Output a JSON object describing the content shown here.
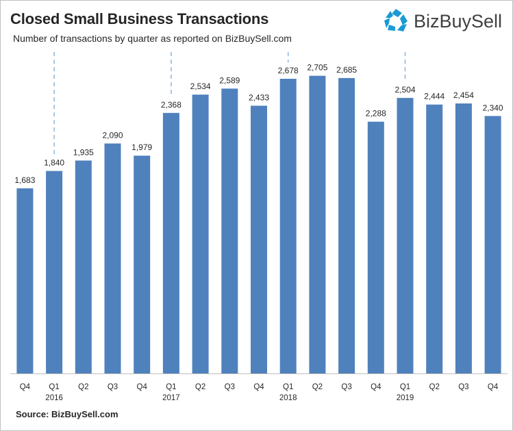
{
  "title": "Closed Small Business Transactions",
  "subtitle": "Number of transactions by quarter as reported  on  BizBuySell.com",
  "source": "Source: BizBuySell.com",
  "logo": {
    "text": "BizBuySell",
    "icon": "bizbuysell-pentagon-icon",
    "color": "#1a9ad6"
  },
  "colors": {
    "bar": "#4f81bd",
    "divider": "#8ab4e0",
    "axis": "#bfbfbf"
  },
  "chart_data": {
    "type": "bar",
    "title": "Closed Small Business Transactions",
    "subtitle": "Number of transactions by quarter as reported  on  BizBuySell.com",
    "categories": [
      "Q4",
      "Q1",
      "Q2",
      "Q3",
      "Q4",
      "Q1",
      "Q2",
      "Q3",
      "Q4",
      "Q1",
      "Q2",
      "Q3",
      "Q4",
      "Q1",
      "Q2",
      "Q3",
      "Q4"
    ],
    "year_labels": [
      "",
      "2016",
      "",
      "",
      "",
      "2017",
      "",
      "",
      "",
      "2018",
      "",
      "",
      "",
      "2019",
      "",
      "",
      ""
    ],
    "values": [
      1683,
      1840,
      1935,
      2090,
      1979,
      2368,
      2534,
      2589,
      2433,
      2678,
      2705,
      2685,
      2288,
      2504,
      2444,
      2454,
      2340
    ],
    "value_labels": [
      "1,683",
      "1,840",
      "1,935",
      "2,090",
      "1,979",
      "2,368",
      "2,534",
      "2,589",
      "2,433",
      "2,678",
      "2,705",
      "2,685",
      "2,288",
      "2,504",
      "2,444",
      "2,454",
      "2,340"
    ],
    "year_dividers_at": [
      1,
      5,
      9,
      13
    ],
    "ylim": [
      0,
      2800
    ],
    "grid": false,
    "legend": "none"
  }
}
